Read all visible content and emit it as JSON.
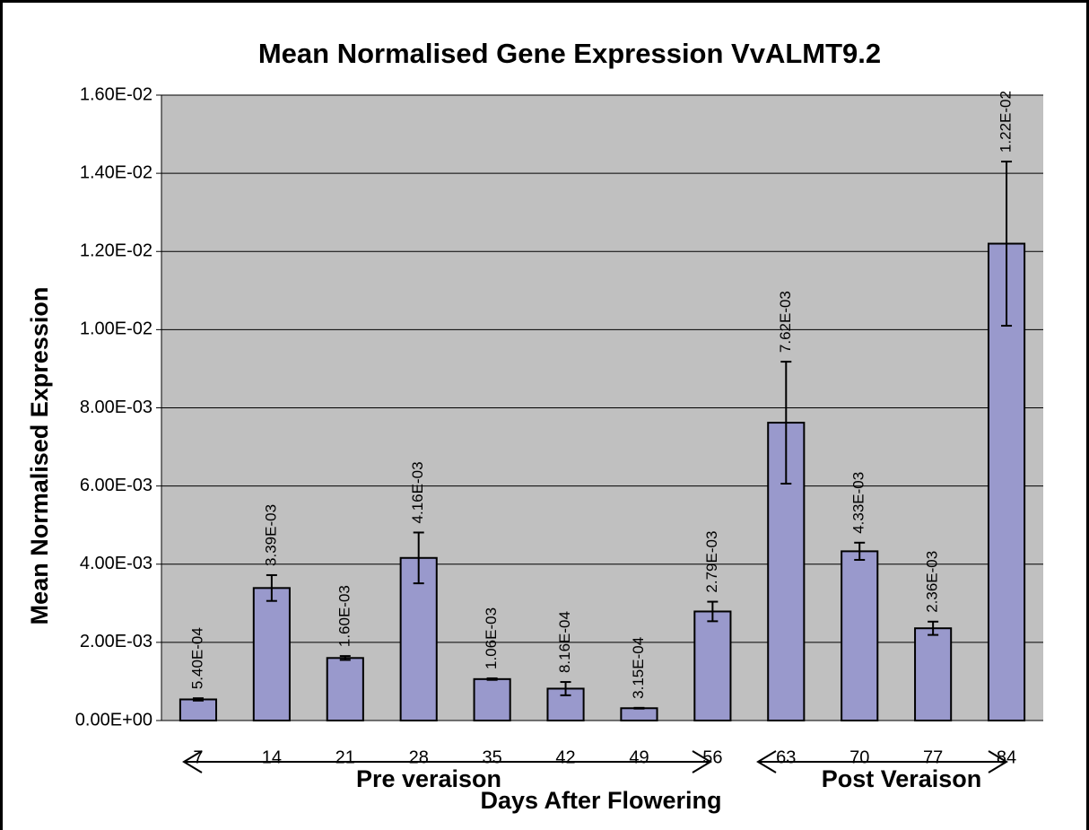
{
  "chart_data": {
    "type": "bar",
    "title": "Mean Normalised Gene Expression VvALMT9.2",
    "x_label": "Days After Flowering",
    "y_label": "Mean Normalised Expression",
    "annotations": [
      "Pre veraison",
      "Post Veraison"
    ],
    "categories": [
      "7",
      "14",
      "21",
      "28",
      "35",
      "42",
      "49",
      "56",
      "63",
      "70",
      "77",
      "84"
    ],
    "values": [
      0.00054,
      0.00339,
      0.0016,
      0.00416,
      0.00106,
      0.000816,
      0.000315,
      0.00279,
      0.00762,
      0.00433,
      0.00236,
      0.0122
    ],
    "value_labels": [
      "5.40E-04",
      "3.39E-03",
      "1.60E-03",
      "4.16E-03",
      "1.06E-03",
      "8.16E-04",
      "3.15E-04",
      "2.79E-03",
      "7.62E-03",
      "4.33E-03",
      "2.36E-03",
      "1.22E-02"
    ],
    "errors": [
      3e-05,
      0.00033,
      5e-05,
      0.00065,
      2e-05,
      0.00017,
      1e-05,
      0.00025,
      0.00156,
      0.00022,
      0.00017,
      0.0021
    ],
    "color": "#9999cc",
    "ylim": [
      0,
      0.016
    ],
    "yticks": [
      {
        "value": 0,
        "label": "0.00E+00"
      },
      {
        "value": 0.002,
        "label": "2.00E-03"
      },
      {
        "value": 0.004,
        "label": "4.00E-03"
      },
      {
        "value": 0.006,
        "label": "6.00E-03"
      },
      {
        "value": 0.008,
        "label": "8.00E-03"
      },
      {
        "value": 0.01,
        "label": "1.00E-02"
      },
      {
        "value": 0.012,
        "label": "1.20E-02"
      },
      {
        "value": 0.014,
        "label": "1.40E-02"
      },
      {
        "value": 0.016,
        "label": "1.60E-02"
      }
    ],
    "grid": true
  }
}
